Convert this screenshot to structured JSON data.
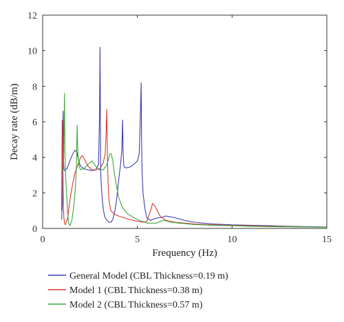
{
  "chart_data": {
    "type": "line",
    "title": "",
    "xlabel": "Frequency (Hz)",
    "ylabel": "Decay rate (dB/m)",
    "xlim": [
      0,
      15
    ],
    "ylim": [
      0,
      12
    ],
    "xticks": [
      0,
      5,
      10,
      15
    ],
    "yticks": [
      0,
      2,
      4,
      6,
      8,
      10,
      12
    ],
    "xtick_labels": [
      "0",
      "5",
      "10",
      "15"
    ],
    "ytick_labels": [
      "0",
      "2",
      "4",
      "6",
      "8",
      "10",
      "12"
    ],
    "grid": false,
    "legend_position": "below plot",
    "series": [
      {
        "name": "General Model (CBL Thickness=0.19 m)",
        "color": "#3b3bb0",
        "x": [
          1.0,
          1.05,
          1.08,
          1.1,
          1.13,
          1.16,
          1.2,
          1.3,
          1.4,
          1.55,
          1.7,
          1.8,
          1.9,
          2.0,
          2.2,
          2.4,
          2.6,
          2.8,
          2.95,
          3.0,
          3.03,
          3.06,
          3.1,
          3.15,
          3.2,
          3.25,
          3.3,
          3.4,
          3.5,
          3.6,
          3.7,
          3.8,
          3.9,
          4.0,
          4.1,
          4.18,
          4.22,
          4.25,
          4.28,
          4.32,
          4.4,
          4.6,
          4.8,
          5.0,
          5.1,
          5.15,
          5.2,
          5.22,
          5.25,
          5.3,
          5.4,
          5.5,
          5.7,
          5.9,
          6.1,
          6.3,
          6.5,
          7.0,
          7.5,
          8.0,
          9.0,
          10.0,
          11.0,
          12.0,
          13.0,
          14.0,
          15.0
        ],
        "values": [
          0.5,
          1.5,
          6.6,
          3.8,
          3.3,
          3.25,
          3.3,
          3.4,
          3.7,
          4.1,
          4.4,
          4.3,
          3.8,
          3.5,
          3.35,
          3.3,
          3.25,
          3.3,
          3.6,
          6.2,
          10.2,
          3.2,
          2.3,
          1.6,
          1.1,
          0.8,
          0.6,
          0.45,
          0.35,
          0.35,
          0.5,
          0.9,
          1.6,
          2.6,
          3.5,
          4.4,
          6.1,
          4.2,
          3.6,
          3.45,
          3.4,
          3.45,
          3.6,
          3.8,
          4.2,
          6.0,
          8.2,
          5.2,
          3.2,
          2.0,
          1.1,
          0.6,
          0.45,
          0.55,
          0.6,
          0.62,
          0.7,
          0.6,
          0.45,
          0.35,
          0.25,
          0.2,
          0.18,
          0.15,
          0.12,
          0.1,
          0.08
        ]
      },
      {
        "name": "Model 1 (CBL Thickness=0.38 m)",
        "color": "#d8382b",
        "x": [
          1.0,
          1.03,
          1.06,
          1.09,
          1.12,
          1.16,
          1.2,
          1.3,
          1.35,
          1.4,
          1.5,
          1.6,
          1.7,
          1.8,
          1.9,
          2.0,
          2.1,
          2.2,
          2.4,
          2.6,
          2.8,
          3.0,
          3.1,
          3.2,
          3.3,
          3.35,
          3.38,
          3.42,
          3.45,
          3.5,
          3.6,
          3.8,
          4.0,
          4.3,
          4.6,
          5.0,
          5.3,
          5.5,
          5.6,
          5.7,
          5.8,
          5.9,
          6.0,
          6.2,
          6.5,
          7.0,
          8.0,
          9.0,
          10.0,
          11.0,
          12.0,
          13.0,
          14.0,
          15.0
        ],
        "values": [
          1.0,
          6.1,
          4.5,
          1.5,
          0.6,
          0.3,
          0.2,
          0.5,
          0.8,
          1.3,
          2.0,
          2.6,
          3.1,
          3.4,
          3.7,
          4.0,
          4.1,
          3.9,
          3.5,
          3.3,
          3.3,
          3.35,
          3.5,
          3.7,
          4.2,
          5.4,
          6.7,
          4.0,
          2.6,
          1.6,
          1.0,
          0.8,
          0.7,
          0.6,
          0.5,
          0.4,
          0.35,
          0.4,
          0.7,
          1.0,
          1.4,
          1.3,
          1.1,
          0.7,
          0.45,
          0.35,
          0.25,
          0.2,
          0.17,
          0.15,
          0.12,
          0.1,
          0.08,
          0.07
        ]
      },
      {
        "name": "Model 2 (CBL Thickness=0.57 m)",
        "color": "#3aa63a",
        "x": [
          1.0,
          1.1,
          1.15,
          1.18,
          1.22,
          1.27,
          1.32,
          1.38,
          1.45,
          1.55,
          1.65,
          1.72,
          1.78,
          1.82,
          1.86,
          1.92,
          2.0,
          2.2,
          2.4,
          2.6,
          2.8,
          3.0,
          3.2,
          3.4,
          3.55,
          3.62,
          3.7,
          3.8,
          4.0,
          4.2,
          4.5,
          5.0,
          5.5,
          6.0,
          6.2,
          6.4,
          6.8,
          7.2,
          8.0,
          9.0,
          10.0,
          11.0,
          12.0,
          13.0,
          14.0,
          15.0
        ],
        "values": [
          3.2,
          3.4,
          7.6,
          4.2,
          2.8,
          1.8,
          0.9,
          0.25,
          0.15,
          0.5,
          1.3,
          2.2,
          3.4,
          5.8,
          4.2,
          3.5,
          3.3,
          3.4,
          3.6,
          3.8,
          3.5,
          3.3,
          3.3,
          3.6,
          4.2,
          4.2,
          3.8,
          3.0,
          1.8,
          1.2,
          0.8,
          0.5,
          0.3,
          0.3,
          0.4,
          0.45,
          0.35,
          0.3,
          0.22,
          0.18,
          0.15,
          0.12,
          0.1,
          0.09,
          0.08,
          0.07
        ]
      }
    ]
  }
}
